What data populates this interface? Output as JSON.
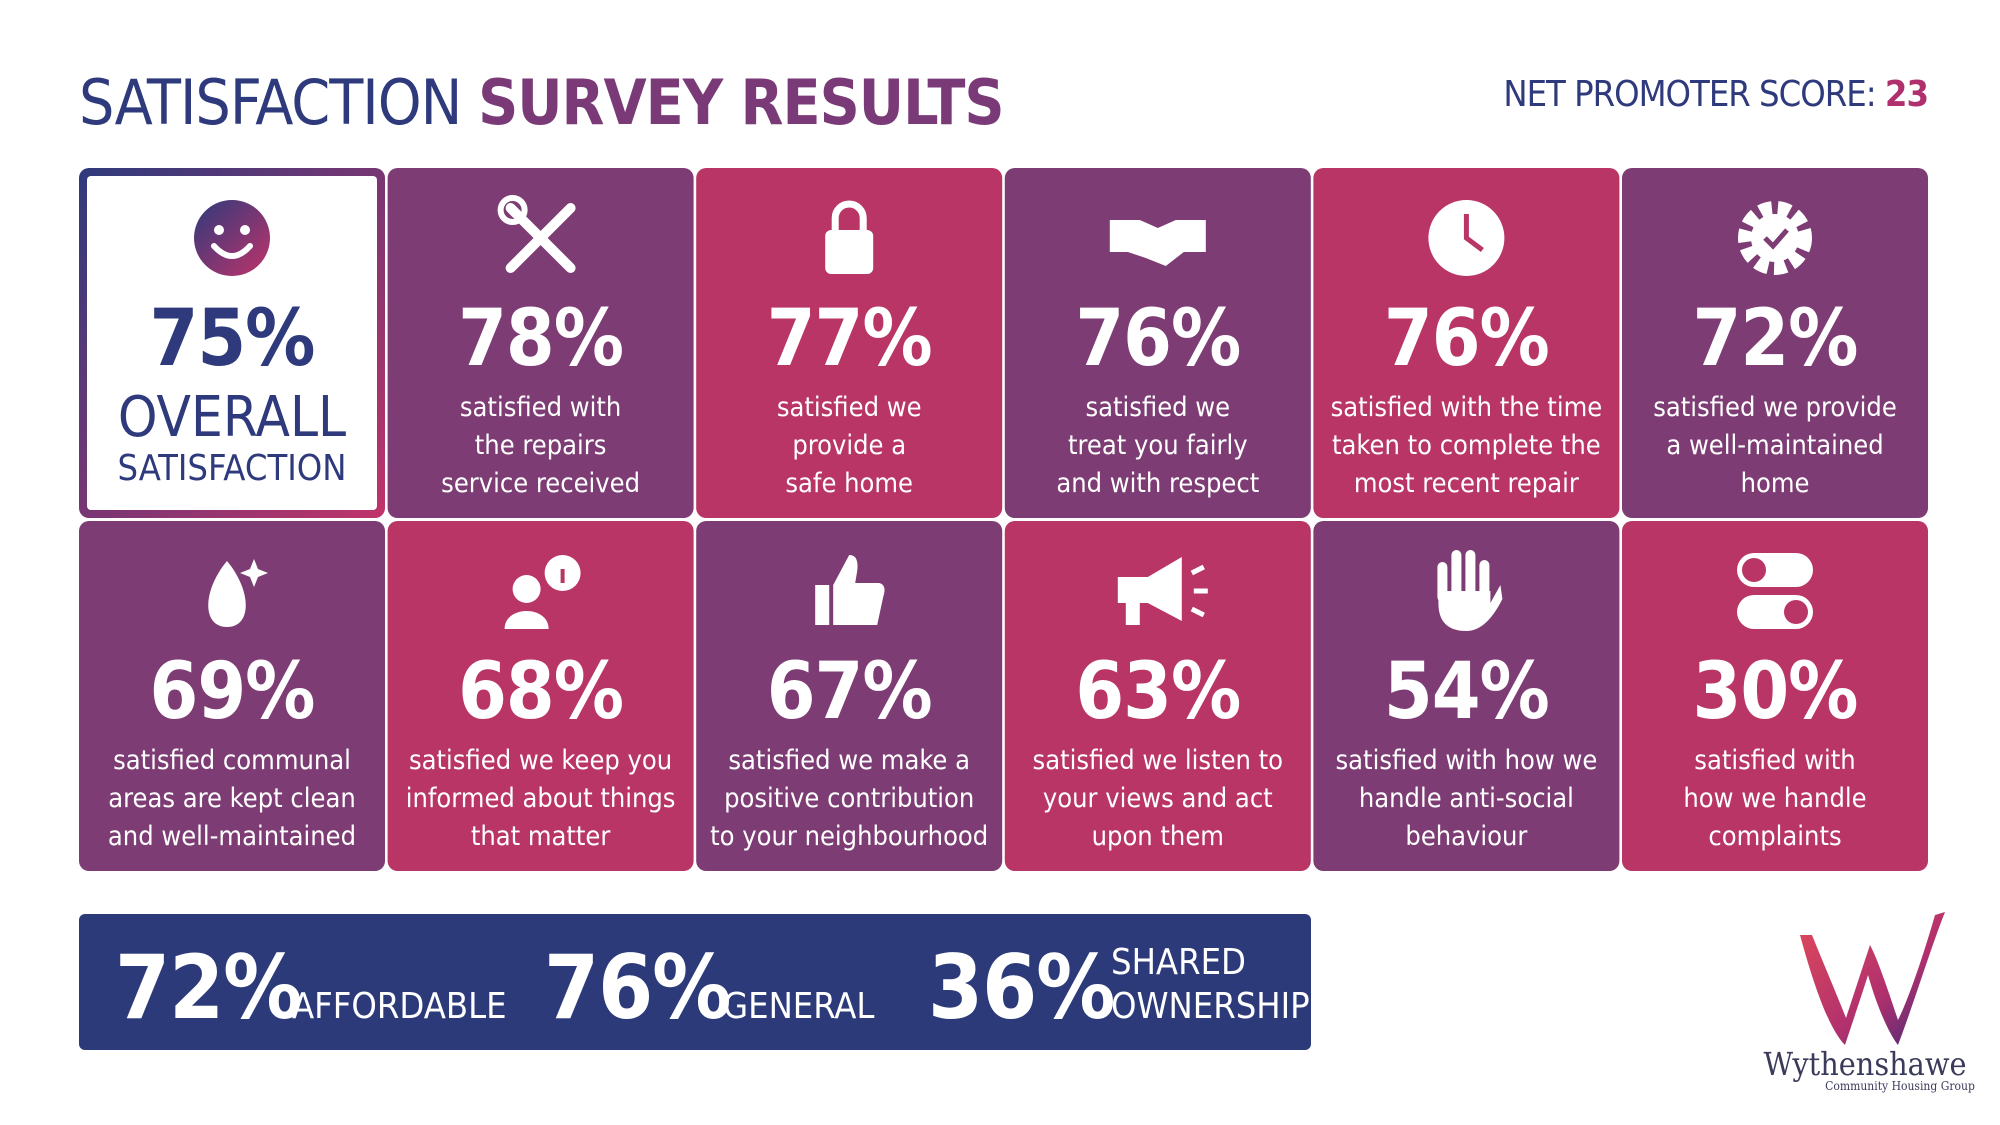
{
  "header": {
    "title_light": "SATISFACTION",
    "title_bold": "SURVEY RESULTS",
    "nps_label": "NET PROMOTER SCORE:",
    "nps_value": "23"
  },
  "tiles": [
    {
      "value": "75%",
      "lines": [
        "OVERALL",
        "SATISFACTION"
      ]
    },
    {
      "value": "78%",
      "lines": [
        "satisfied with",
        "the repairs",
        "service received"
      ]
    },
    {
      "value": "77%",
      "lines": [
        "satisfied we",
        "provide a",
        "safe home"
      ]
    },
    {
      "value": "76%",
      "lines": [
        "satisfied we",
        "treat you fairly",
        "and with respect"
      ]
    },
    {
      "value": "76%",
      "lines": [
        "satisfied with the time",
        "taken to complete the",
        "most recent repair"
      ]
    },
    {
      "value": "72%",
      "lines": [
        "satisfied we provide",
        "a well-maintained",
        "home"
      ]
    },
    {
      "value": "69%",
      "lines": [
        "satisfied communal",
        "areas are kept clean",
        "and well-maintained"
      ]
    },
    {
      "value": "68%",
      "lines": [
        "satisfied we keep you",
        "informed about things",
        "that matter"
      ]
    },
    {
      "value": "67%",
      "lines": [
        "satisfied we make a",
        "positive contribution",
        "to your neighbourhood"
      ]
    },
    {
      "value": "63%",
      "lines": [
        "satisfied we listen to",
        "your views and act",
        "upon them"
      ]
    },
    {
      "value": "54%",
      "lines": [
        "satisfied with how we",
        "handle anti-social",
        "behaviour"
      ]
    },
    {
      "value": "30%",
      "lines": [
        "satisfied with",
        "how we handle",
        "complaints"
      ]
    }
  ],
  "tenure": [
    {
      "value": "72%",
      "lines": [
        "AFFORDABLE"
      ]
    },
    {
      "value": "76%",
      "lines": [
        "GENERAL"
      ]
    },
    {
      "value": "36%",
      "lines": [
        "SHARED",
        "OWNERSHIP"
      ]
    }
  ],
  "logo": {
    "name": "Wythenshawe",
    "tagline": "Community Housing Group"
  }
}
